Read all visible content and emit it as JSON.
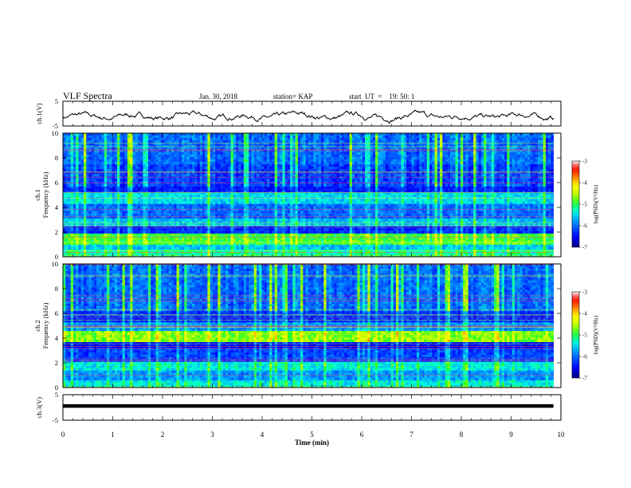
{
  "header": {
    "title": "VLF Spectra",
    "date": "Jan. 30, 2018",
    "station": "station= KAP",
    "start": "start  UT  =    19: 50: 1"
  },
  "chart_data": [
    {
      "type": "line",
      "panel": "ch1-waveform",
      "ylabel": "ch.1(V)",
      "yticks": [
        "5",
        "-5"
      ],
      "ylim": [
        -5,
        5
      ],
      "xlim": [
        0,
        10
      ],
      "series": [
        {
          "x_range": [
            0,
            9.85
          ],
          "shape": "noisy fluctuating signal, mostly between -4 and +2 V"
        }
      ]
    },
    {
      "type": "heatmap",
      "panel": "ch1-spectrogram",
      "ylabel": "ch.1\nFrequency (kHz)",
      "yticks": [
        "0",
        "2",
        "4",
        "6",
        "8",
        "10"
      ],
      "ylim": [
        0,
        10
      ],
      "xlim": [
        0,
        10
      ],
      "data_extent_min": 9.85,
      "colorbar": {
        "label": "log(PSD)(V²/Hz)",
        "ticks": [
          "-3",
          "-4",
          "-5",
          "-6",
          "-7"
        ],
        "range": [
          -7,
          -3
        ]
      },
      "bands": [
        {
          "freq_range": [
            0,
            0.6
          ],
          "level": -5.2
        },
        {
          "freq_range": [
            0.6,
            1.0
          ],
          "level": -5.6
        },
        {
          "freq_range": [
            1.0,
            1.9
          ],
          "level": -4.9
        },
        {
          "freq_range": [
            1.9,
            2.5
          ],
          "level": -6.3
        },
        {
          "freq_range": [
            2.5,
            3.1
          ],
          "level": -5.6
        },
        {
          "freq_range": [
            3.1,
            4.3
          ],
          "level": -6.0
        },
        {
          "freq_range": [
            4.3,
            5.2
          ],
          "level": -5.5
        },
        {
          "freq_range": [
            5.2,
            5.7
          ],
          "level": -6.4
        },
        {
          "freq_range": [
            5.7,
            7.5
          ],
          "level": -6.2
        },
        {
          "freq_range": [
            7.5,
            10
          ],
          "level": -6.0
        }
      ]
    },
    {
      "type": "heatmap",
      "panel": "ch2-spectrogram",
      "ylabel": "ch.2\nFrequency (kHz)",
      "yticks": [
        "0",
        "2",
        "4",
        "6",
        "8",
        "10"
      ],
      "ylim": [
        0,
        10
      ],
      "xlim": [
        0,
        10
      ],
      "data_extent_min": 9.85,
      "colorbar": {
        "label": "log(PSD)(V²/Hz)",
        "ticks": [
          "-3",
          "-4",
          "-5",
          "-6",
          "-7"
        ],
        "range": [
          -7,
          -3
        ]
      },
      "bands": [
        {
          "freq_range": [
            0,
            0.6
          ],
          "level": -5.4
        },
        {
          "freq_range": [
            0.6,
            1.4
          ],
          "level": -5.8
        },
        {
          "freq_range": [
            1.4,
            2.1
          ],
          "level": -5.4
        },
        {
          "freq_range": [
            2.1,
            3.2
          ],
          "level": -6.2
        },
        {
          "freq_range": [
            3.2,
            3.7
          ],
          "level": -6.5
        },
        {
          "freq_range": [
            3.7,
            4.6
          ],
          "level": -4.7
        },
        {
          "freq_range": [
            4.6,
            5.3
          ],
          "level": -5.8
        },
        {
          "freq_range": [
            5.3,
            6.2
          ],
          "level": -6.3
        },
        {
          "freq_range": [
            6.2,
            10
          ],
          "level": -6.0
        }
      ]
    },
    {
      "type": "line",
      "panel": "ch3-waveform",
      "ylabel": "ch.3(V)",
      "yticks": [
        "5",
        "-5"
      ],
      "ylim": [
        -5,
        5
      ],
      "xlim": [
        0,
        10
      ],
      "series": [
        {
          "x_range": [
            0,
            9.85
          ],
          "y": 0.6,
          "shape": "flat thick line"
        }
      ]
    }
  ],
  "x_axis": {
    "label": "Time (min)",
    "ticks": [
      "0",
      "1",
      "2",
      "3",
      "4",
      "5",
      "6",
      "7",
      "8",
      "9",
      "10"
    ]
  },
  "colors": {
    "trace": "#000000",
    "background": "#ffffff"
  }
}
